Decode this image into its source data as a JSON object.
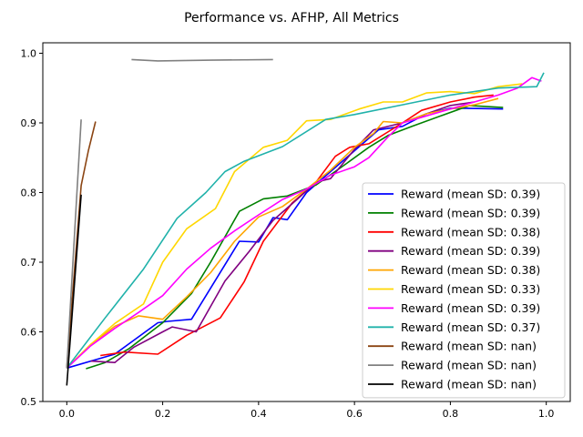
{
  "chart_data": {
    "type": "line",
    "title": "Performance vs. AFHP, All Metrics",
    "xlabel": "",
    "ylabel": "",
    "xlim": [
      -0.05,
      1.05
    ],
    "ylim": [
      0.5,
      1.015
    ],
    "xticks": [
      0.0,
      0.2,
      0.4,
      0.6,
      0.8,
      1.0
    ],
    "xtick_labels": [
      "0.0",
      "0.2",
      "0.4",
      "0.6",
      "0.8",
      "1.0"
    ],
    "yticks": [
      0.5,
      0.6,
      0.7,
      0.8,
      0.9,
      1.0
    ],
    "ytick_labels": [
      "0.5",
      "0.6",
      "0.7",
      "0.8",
      "0.9",
      "1.0"
    ],
    "grid": false,
    "legend_position": "bottom-right",
    "series": [
      {
        "name": "Reward (mean SD: 0.39)",
        "color": "#0000ff",
        "points": [
          [
            0.0,
            0.548
          ],
          [
            0.1,
            0.568
          ],
          [
            0.19,
            0.613
          ],
          [
            0.21,
            0.615
          ],
          [
            0.26,
            0.618
          ],
          [
            0.36,
            0.73
          ],
          [
            0.4,
            0.729
          ],
          [
            0.43,
            0.764
          ],
          [
            0.46,
            0.761
          ],
          [
            0.5,
            0.8
          ],
          [
            0.55,
            0.83
          ],
          [
            0.6,
            0.86
          ],
          [
            0.65,
            0.89
          ],
          [
            0.7,
            0.895
          ],
          [
            0.75,
            0.913
          ],
          [
            0.8,
            0.921
          ],
          [
            0.83,
            0.921
          ],
          [
            0.91,
            0.92
          ]
        ]
      },
      {
        "name": "Reward (mean SD: 0.39)",
        "color": "#008000",
        "points": [
          [
            0.04,
            0.547
          ],
          [
            0.08,
            0.556
          ],
          [
            0.13,
            0.576
          ],
          [
            0.2,
            0.613
          ],
          [
            0.26,
            0.655
          ],
          [
            0.3,
            0.7
          ],
          [
            0.36,
            0.773
          ],
          [
            0.41,
            0.791
          ],
          [
            0.46,
            0.795
          ],
          [
            0.52,
            0.811
          ],
          [
            0.58,
            0.84
          ],
          [
            0.63,
            0.865
          ],
          [
            0.67,
            0.882
          ],
          [
            0.72,
            0.895
          ],
          [
            0.78,
            0.91
          ],
          [
            0.84,
            0.925
          ],
          [
            0.91,
            0.922
          ]
        ]
      },
      {
        "name": "Reward (mean SD: 0.38)",
        "color": "#ff0000",
        "points": [
          [
            0.07,
            0.566
          ],
          [
            0.12,
            0.571
          ],
          [
            0.19,
            0.568
          ],
          [
            0.25,
            0.595
          ],
          [
            0.32,
            0.62
          ],
          [
            0.37,
            0.672
          ],
          [
            0.41,
            0.73
          ],
          [
            0.47,
            0.785
          ],
          [
            0.52,
            0.815
          ],
          [
            0.56,
            0.852
          ],
          [
            0.59,
            0.865
          ],
          [
            0.63,
            0.87
          ],
          [
            0.7,
            0.9
          ],
          [
            0.74,
            0.918
          ],
          [
            0.8,
            0.93
          ],
          [
            0.85,
            0.937
          ],
          [
            0.89,
            0.94
          ]
        ]
      },
      {
        "name": "Reward (mean SD: 0.39)",
        "color": "#800080",
        "points": [
          [
            0.05,
            0.558
          ],
          [
            0.1,
            0.556
          ],
          [
            0.14,
            0.578
          ],
          [
            0.2,
            0.6
          ],
          [
            0.22,
            0.607
          ],
          [
            0.27,
            0.6
          ],
          [
            0.33,
            0.673
          ],
          [
            0.38,
            0.715
          ],
          [
            0.43,
            0.76
          ],
          [
            0.48,
            0.79
          ],
          [
            0.52,
            0.815
          ],
          [
            0.55,
            0.82
          ],
          [
            0.6,
            0.862
          ],
          [
            0.64,
            0.89
          ],
          [
            0.7,
            0.9
          ],
          [
            0.75,
            0.913
          ],
          [
            0.8,
            0.925
          ],
          [
            0.85,
            0.93
          ]
        ]
      },
      {
        "name": "Reward (mean SD: 0.38)",
        "color": "#ffa500",
        "points": [
          [
            0.0,
            0.548
          ],
          [
            0.05,
            0.582
          ],
          [
            0.1,
            0.608
          ],
          [
            0.15,
            0.623
          ],
          [
            0.2,
            0.618
          ],
          [
            0.25,
            0.65
          ],
          [
            0.3,
            0.685
          ],
          [
            0.35,
            0.73
          ],
          [
            0.4,
            0.765
          ],
          [
            0.45,
            0.78
          ],
          [
            0.5,
            0.805
          ],
          [
            0.55,
            0.832
          ],
          [
            0.6,
            0.865
          ],
          [
            0.64,
            0.885
          ],
          [
            0.66,
            0.902
          ],
          [
            0.7,
            0.9
          ],
          [
            0.75,
            0.913
          ],
          [
            0.8,
            0.92
          ],
          [
            0.85,
            0.926
          ],
          [
            0.9,
            0.935
          ]
        ]
      },
      {
        "name": "Reward (mean SD: 0.33)",
        "color": "#ffd700",
        "points": [
          [
            0.0,
            0.548
          ],
          [
            0.05,
            0.582
          ],
          [
            0.1,
            0.612
          ],
          [
            0.16,
            0.64
          ],
          [
            0.2,
            0.7
          ],
          [
            0.25,
            0.748
          ],
          [
            0.31,
            0.777
          ],
          [
            0.35,
            0.83
          ],
          [
            0.41,
            0.865
          ],
          [
            0.46,
            0.875
          ],
          [
            0.5,
            0.903
          ],
          [
            0.55,
            0.905
          ],
          [
            0.61,
            0.92
          ],
          [
            0.66,
            0.93
          ],
          [
            0.7,
            0.93
          ],
          [
            0.75,
            0.943
          ],
          [
            0.8,
            0.945
          ],
          [
            0.85,
            0.942
          ],
          [
            0.9,
            0.952
          ],
          [
            0.95,
            0.956
          ]
        ]
      },
      {
        "name": "Reward (mean SD: 0.39)",
        "color": "#ff00ff",
        "points": [
          [
            0.0,
            0.548
          ],
          [
            0.05,
            0.58
          ],
          [
            0.1,
            0.605
          ],
          [
            0.15,
            0.628
          ],
          [
            0.2,
            0.652
          ],
          [
            0.25,
            0.69
          ],
          [
            0.3,
            0.72
          ],
          [
            0.35,
            0.745
          ],
          [
            0.4,
            0.768
          ],
          [
            0.45,
            0.79
          ],
          [
            0.5,
            0.805
          ],
          [
            0.55,
            0.825
          ],
          [
            0.6,
            0.837
          ],
          [
            0.63,
            0.85
          ],
          [
            0.67,
            0.88
          ],
          [
            0.7,
            0.9
          ],
          [
            0.75,
            0.91
          ],
          [
            0.8,
            0.92
          ],
          [
            0.85,
            0.93
          ],
          [
            0.9,
            0.94
          ],
          [
            0.94,
            0.95
          ],
          [
            0.97,
            0.965
          ],
          [
            0.99,
            0.96
          ]
        ]
      },
      {
        "name": "Reward (mean SD: 0.37)",
        "color": "#20b2aa",
        "points": [
          [
            0.0,
            0.548
          ],
          [
            0.08,
            0.62
          ],
          [
            0.16,
            0.69
          ],
          [
            0.23,
            0.763
          ],
          [
            0.29,
            0.8
          ],
          [
            0.33,
            0.83
          ],
          [
            0.37,
            0.845
          ],
          [
            0.45,
            0.866
          ],
          [
            0.54,
            0.905
          ],
          [
            0.6,
            0.912
          ],
          [
            0.7,
            0.926
          ],
          [
            0.8,
            0.94
          ],
          [
            0.9,
            0.95
          ],
          [
            0.98,
            0.952
          ],
          [
            0.995,
            0.972
          ]
        ]
      },
      {
        "name": "Reward (mean SD: nan)",
        "color": "#8b4513",
        "points": [
          [
            0.0,
            0.548
          ],
          [
            0.03,
            0.81
          ],
          [
            0.045,
            0.86
          ],
          [
            0.06,
            0.902
          ]
        ]
      },
      {
        "name": "Reward (mean SD: nan)",
        "color": "#808080",
        "points": [
          [
            0.0,
            0.548
          ],
          [
            0.03,
            0.905
          ]
        ]
      },
      {
        "name": "Reward (mean SD: nan)",
        "color": "#000000",
        "points": [
          [
            0.0,
            0.523
          ],
          [
            0.03,
            0.797
          ]
        ]
      },
      {
        "name": "",
        "color": "#808080",
        "points": [
          [
            0.135,
            0.991
          ],
          [
            0.19,
            0.989
          ],
          [
            0.3,
            0.99
          ],
          [
            0.43,
            0.991
          ]
        ]
      }
    ]
  }
}
